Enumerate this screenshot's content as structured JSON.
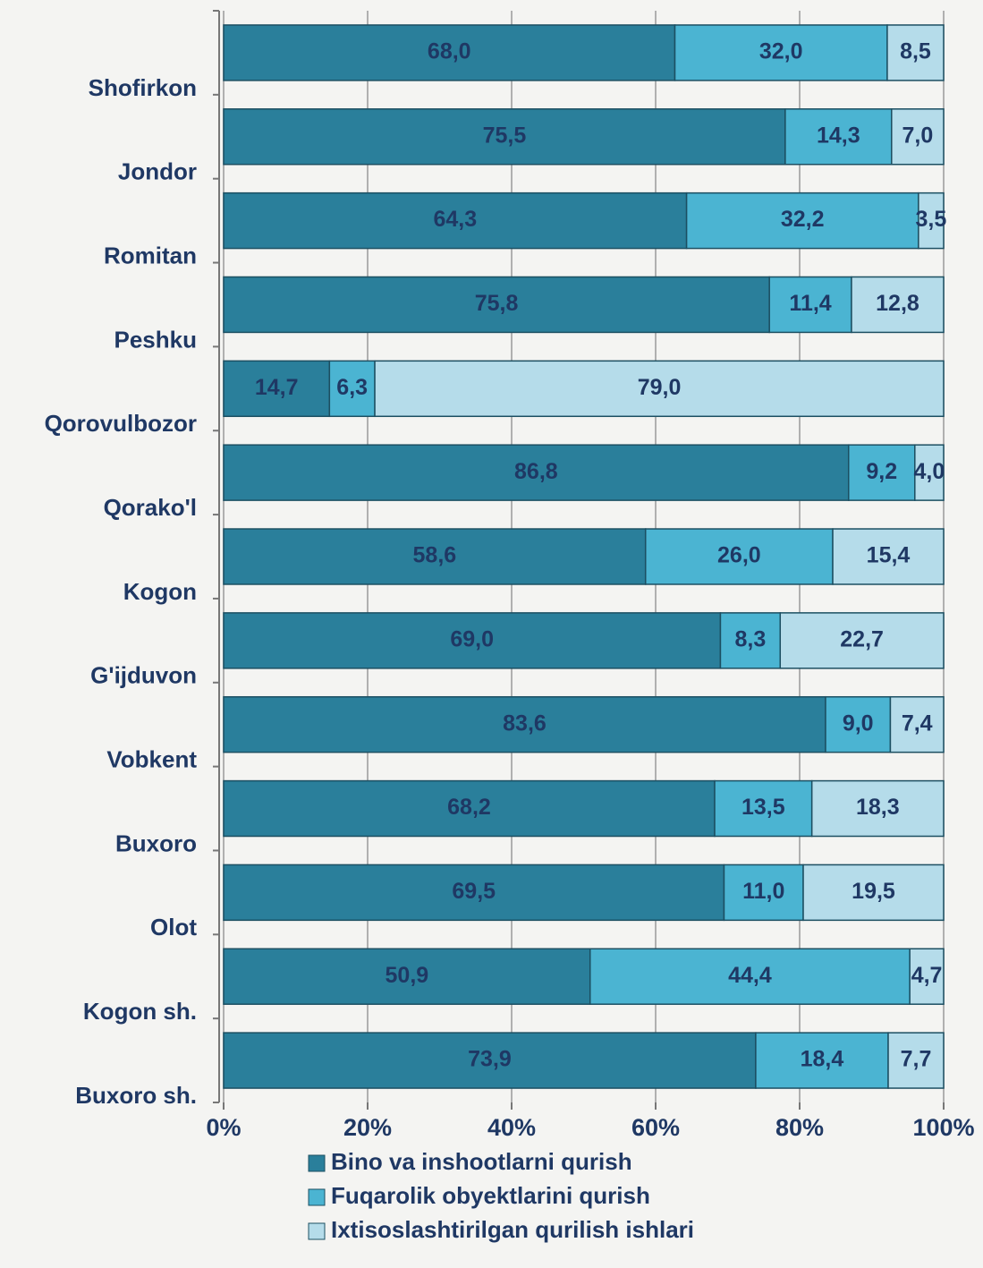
{
  "chart_data": {
    "type": "bar",
    "orientation": "horizontal",
    "stacking": "percent",
    "categories": [
      "Shofirkon",
      "Jondor",
      "Romitan",
      "Peshku",
      "Qorovulbozor",
      "Qorako'l",
      "Kogon",
      "G'ijduvon",
      "Vobkent",
      "Buxoro",
      "Olot",
      "Kogon sh.",
      "Buxoro sh."
    ],
    "series": [
      {
        "name": "Bino va inshootlarni qurish",
        "color": "#2a7f9b",
        "values": [
          68.0,
          75.5,
          64.3,
          75.8,
          14.7,
          86.8,
          58.6,
          69.0,
          83.6,
          68.2,
          69.5,
          50.9,
          73.9
        ],
        "value_labels": [
          "68,0",
          "75,5",
          "64,3",
          "75,8",
          "14,7",
          "86,8",
          "58,6",
          "69,0",
          "83,6",
          "68,2",
          "69,5",
          "50,9",
          "73,9"
        ]
      },
      {
        "name": "Fuqarolik obyektlarini qurish",
        "color": "#4bb4d2",
        "values": [
          32.0,
          14.3,
          32.2,
          11.4,
          6.3,
          9.2,
          26.0,
          8.3,
          9.0,
          13.5,
          11.0,
          44.4,
          18.4
        ],
        "value_labels": [
          "32,0",
          "14,3",
          "32,2",
          "11,4",
          "6,3",
          "9,2",
          "26,0",
          "8,3",
          "9,0",
          "13,5",
          "11,0",
          "44,4",
          "18,4"
        ]
      },
      {
        "name": "Ixtisoslashtirilgan qurilish ishlari",
        "color": "#b5dcea",
        "values": [
          8.5,
          7.0,
          3.5,
          12.8,
          79.0,
          4.0,
          15.4,
          22.7,
          7.4,
          18.3,
          19.5,
          4.7,
          7.7
        ],
        "value_labels": [
          "8,5",
          "7,0",
          "3,5",
          "12,8",
          "79,0",
          "4,0",
          "15,4",
          "22,7",
          "7,4",
          "18,3",
          "19,5",
          "4,7",
          "7,7"
        ]
      }
    ],
    "xlim": [
      0,
      100
    ],
    "xticks": [
      {
        "value": 0,
        "label": "0%"
      },
      {
        "value": 20,
        "label": "20%"
      },
      {
        "value": 40,
        "label": "40%"
      },
      {
        "value": 60,
        "label": "60%"
      },
      {
        "value": 80,
        "label": "80%"
      },
      {
        "value": 100,
        "label": "100%"
      }
    ],
    "grid": true,
    "legend": "bottom"
  }
}
